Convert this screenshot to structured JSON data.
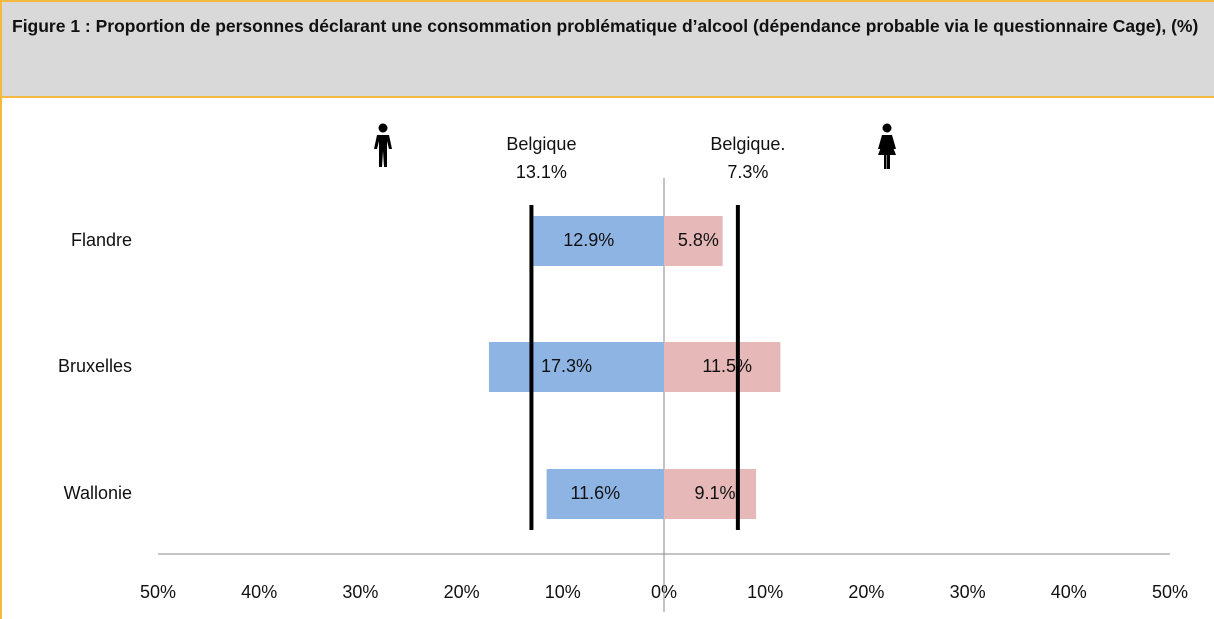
{
  "chart_data": {
    "type": "butterfly-bar",
    "title": "Figure 1 : Proportion de personnes déclarant une consommation problématique d’alcool (dépendance probable via le questionnaire Cage), (%)",
    "categories": [
      "Flandre",
      "Bruxelles",
      "Wallonie"
    ],
    "series": [
      {
        "color": "#8eb4e3",
        "values": [
          -12.9,
          -17.3,
          -11.6
        ],
        "value_labels": [
          "12.9%",
          "17.3%",
          "11.6%"
        ]
      },
      {
        "color": "#e6b9b8",
        "values": [
          5.8,
          11.5,
          9.1
        ],
        "value_labels": [
          "5.8%",
          "11.5%",
          "9.1%"
        ]
      }
    ],
    "reference_lines": [
      {
        "label": "Belgique",
        "value": -13.1,
        "value_label": "13.1%"
      },
      {
        "label": "Belgique.",
        "value": 7.3,
        "value_label": "7.3%"
      }
    ],
    "xlim": [
      -50,
      50
    ],
    "xticks": [
      {
        "value": -50,
        "label": "50%"
      },
      {
        "value": -40,
        "label": "40%"
      },
      {
        "value": -30,
        "label": "30%"
      },
      {
        "value": -20,
        "label": "20%"
      },
      {
        "value": -10,
        "label": "10%"
      },
      {
        "value": 0,
        "label": "0%"
      },
      {
        "value": 10,
        "label": "10%"
      },
      {
        "value": 20,
        "label": "20%"
      },
      {
        "value": 30,
        "label": "30%"
      },
      {
        "value": 40,
        "label": "40%"
      },
      {
        "value": 50,
        "label": "50%"
      }
    ]
  }
}
